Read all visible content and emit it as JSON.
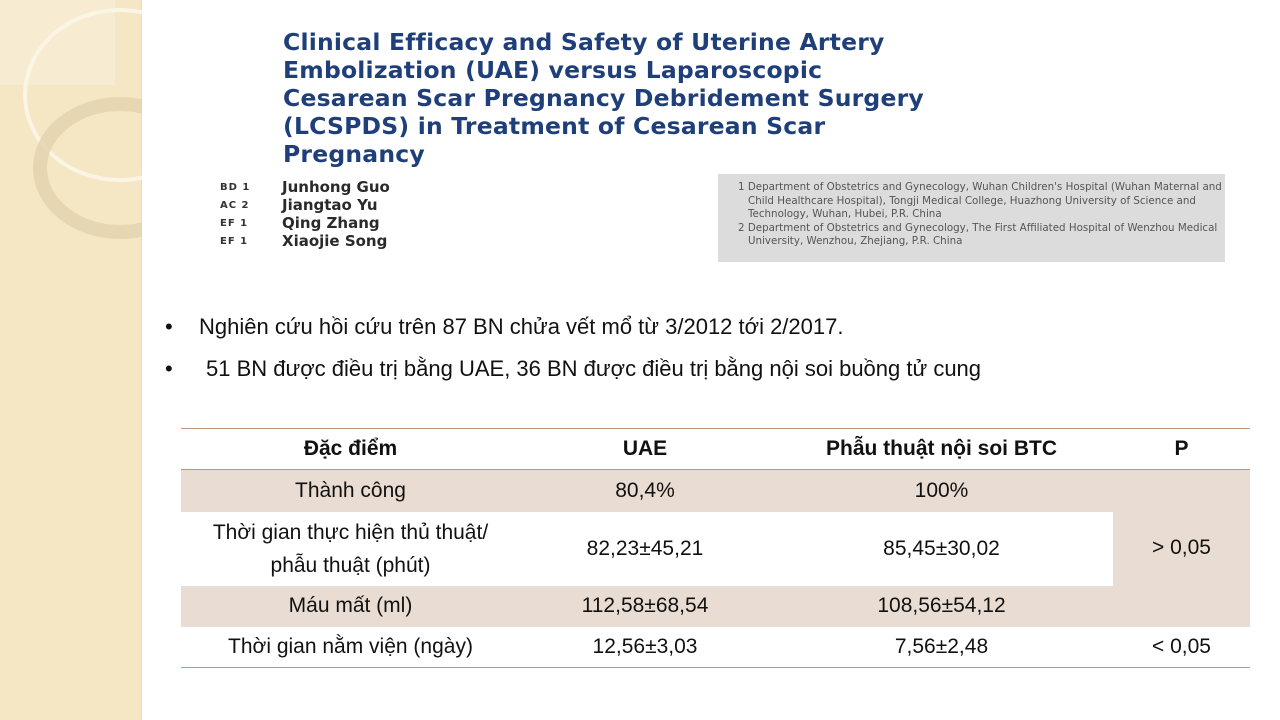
{
  "paper": {
    "title_lines": [
      "Clinical Efficacy and Safety of Uterine Artery",
      "Embolization (UAE) versus Laparoscopic",
      "Cesarean Scar Pregnancy Debridement Surgery",
      "(LCSPDS) in Treatment of Cesarean Scar",
      "Pregnancy"
    ],
    "authors": [
      {
        "role": "BD 1",
        "name": "Junhong Guo"
      },
      {
        "role": "AC 2",
        "name": "Jiangtao Yu"
      },
      {
        "role": "EF 1",
        "name": "Qing Zhang"
      },
      {
        "role": "EF 1",
        "name": "Xiaojie Song"
      }
    ],
    "affiliations": [
      "1 Department of Obstetrics and Gynecology, Wuhan Children's Hospital (Wuhan Maternal and Child Healthcare Hospital), Tongji Medical College, Huazhong University of Science and Technology, Wuhan, Hubei, P.R. China",
      "2 Department of Obstetrics and Gynecology, The First Affiliated Hospital of Wenzhou Medical University, Wenzhou, Zhejiang, P.R. China"
    ]
  },
  "bullets": [
    "Nghiên cứu hồi cứu trên 87 BN chửa vết mổ từ 3/2012 tới 2/2017.",
    "51 BN được điều trị bằng UAE, 36 BN được điều trị bằng nội soi buồng tử cung"
  ],
  "table": {
    "headers": [
      "Đặc điểm",
      "UAE",
      "Phẫu thuật nội soi BTC",
      "P"
    ],
    "rows": [
      [
        "Thành công",
        "80,4%",
        "100%"
      ],
      [
        "Thời gian thực hiện thủ thuật/ phẫu thuật (phút)",
        "82,23±45,21",
        "85,45±30,02"
      ],
      [
        "Máu mất (ml)",
        "112,58±68,54",
        "108,56±54,12"
      ],
      [
        "Thời gian nằm viện (ngày)",
        "12,56±3,03",
        "7,56±2,48",
        "< 0,05"
      ]
    ],
    "p_merged": "> 0,05"
  }
}
